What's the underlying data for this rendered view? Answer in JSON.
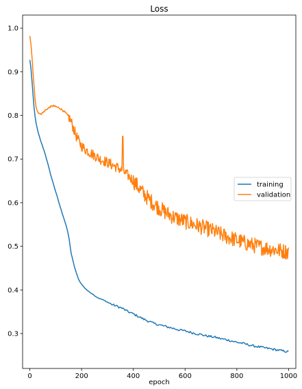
{
  "chart_data": {
    "type": "line",
    "title": "Loss",
    "xlabel": "epoch",
    "ylabel": "",
    "xlim": [
      -28,
      1028
    ],
    "ylim": [
      0.22,
      1.03
    ],
    "xticks": [
      0,
      200,
      400,
      600,
      800,
      1000
    ],
    "yticks": [
      0.3,
      0.4,
      0.5,
      0.6,
      0.7,
      0.8,
      0.9,
      1.0
    ],
    "xtick_labels": [
      "0",
      "200",
      "400",
      "600",
      "800",
      "1000"
    ],
    "ytick_labels": [
      "0.3",
      "0.4",
      "0.5",
      "0.6",
      "0.7",
      "0.8",
      "0.9",
      "1.0"
    ],
    "grid": false,
    "legend": {
      "position": "center-right"
    },
    "x": [
      0,
      5,
      10,
      15,
      20,
      25,
      30,
      40,
      50,
      60,
      70,
      80,
      90,
      100,
      110,
      120,
      130,
      140,
      150,
      160,
      170,
      180,
      190,
      200,
      210,
      220,
      230,
      240,
      250,
      260,
      270,
      280,
      290,
      300,
      320,
      340,
      360,
      380,
      400,
      420,
      440,
      460,
      480,
      500,
      520,
      540,
      560,
      580,
      600,
      620,
      640,
      660,
      680,
      700,
      720,
      740,
      760,
      780,
      800,
      820,
      840,
      860,
      880,
      900,
      920,
      940,
      960,
      980,
      1000
    ],
    "series": [
      {
        "name": "training",
        "color": "#1f77b4",
        "values": [
          0.927,
          0.905,
          0.865,
          0.825,
          0.798,
          0.78,
          0.765,
          0.745,
          0.728,
          0.71,
          0.688,
          0.665,
          0.645,
          0.625,
          0.605,
          0.585,
          0.567,
          0.548,
          0.524,
          0.483,
          0.458,
          0.438,
          0.422,
          0.413,
          0.406,
          0.4,
          0.395,
          0.392,
          0.387,
          0.383,
          0.38,
          0.378,
          0.375,
          0.372,
          0.366,
          0.362,
          0.357,
          0.35,
          0.345,
          0.339,
          0.333,
          0.328,
          0.323,
          0.32,
          0.317,
          0.314,
          0.311,
          0.308,
          0.306,
          0.303,
          0.3,
          0.298,
          0.295,
          0.293,
          0.291,
          0.288,
          0.286,
          0.283,
          0.28,
          0.278,
          0.275,
          0.272,
          0.27,
          0.268,
          0.266,
          0.264,
          0.262,
          0.26,
          0.258
        ]
      },
      {
        "name": "validation",
        "color": "#ff7f0e",
        "values": [
          0.983,
          0.958,
          0.92,
          0.875,
          0.838,
          0.818,
          0.808,
          0.803,
          0.806,
          0.812,
          0.816,
          0.82,
          0.822,
          0.82,
          0.818,
          0.815,
          0.81,
          0.805,
          0.797,
          0.785,
          0.768,
          0.752,
          0.74,
          0.73,
          0.724,
          0.72,
          0.716,
          0.712,
          0.708,
          0.705,
          0.7,
          0.698,
          0.695,
          0.692,
          0.686,
          0.68,
          0.672,
          0.662,
          0.65,
          0.635,
          0.62,
          0.608,
          0.597,
          0.588,
          0.579,
          0.572,
          0.566,
          0.561,
          0.557,
          0.553,
          0.549,
          0.545,
          0.541,
          0.537,
          0.532,
          0.527,
          0.522,
          0.518,
          0.514,
          0.51,
          0.506,
          0.503,
          0.5,
          0.497,
          0.495,
          0.493,
          0.491,
          0.489,
          0.487
        ]
      }
    ],
    "annotations": [
      {
        "series": "validation",
        "x": 359,
        "y": 0.752,
        "note": "spike"
      }
    ]
  }
}
